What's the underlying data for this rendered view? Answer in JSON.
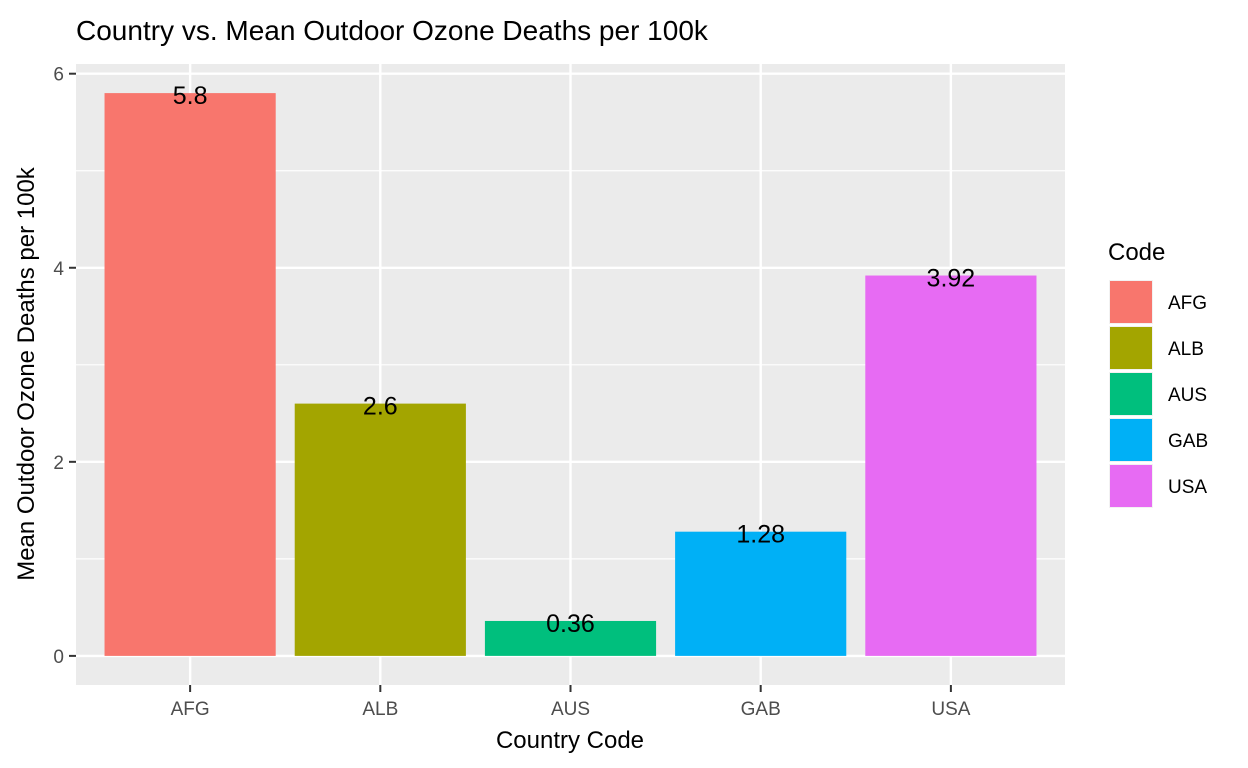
{
  "chart_data": {
    "type": "bar",
    "title": "Country vs. Mean Outdoor Ozone Deaths per 100k",
    "xlabel": "Country Code",
    "ylabel": "Mean Outdoor Ozone Deaths per 100k",
    "categories": [
      "AFG",
      "ALB",
      "AUS",
      "GAB",
      "USA"
    ],
    "values": [
      5.8,
      2.6,
      0.36,
      1.28,
      3.92
    ],
    "data_labels": [
      "5.8",
      "2.6",
      "0.36",
      "1.28",
      "3.92"
    ],
    "colors": [
      "#F8766D",
      "#A3A500",
      "#00BF7D",
      "#00B0F6",
      "#E76BF3"
    ],
    "yticks": [
      "0",
      "2",
      "4",
      "6"
    ],
    "ylim": [
      -0.3,
      6.1
    ],
    "grid": true,
    "legend": {
      "title": "Code",
      "position": "right",
      "entries": [
        "AFG",
        "ALB",
        "AUS",
        "GAB",
        "USA"
      ]
    }
  }
}
